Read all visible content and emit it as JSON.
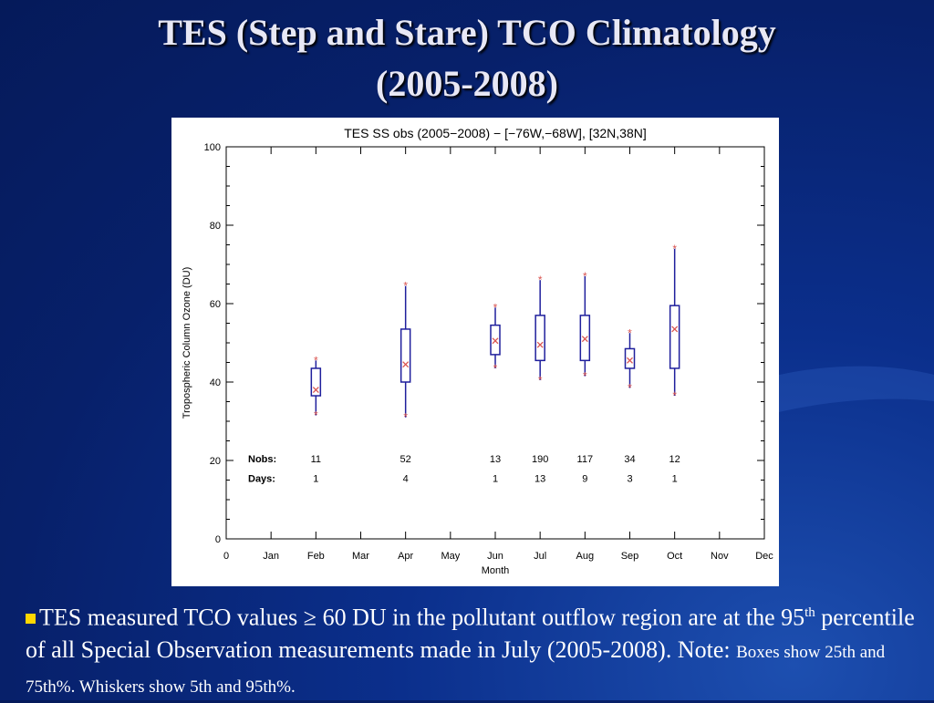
{
  "slide": {
    "title_line1": "TES (Step and Stare) TCO Climatology",
    "title_line2": "(2005-2008)"
  },
  "caption": {
    "part1": "TES measured TCO values ≥ 60 DU in the pollutant outflow region are at the 95",
    "sup": "th",
    "part2": " percentile of  all Special Observation measurements made in July (2005-2008). Note: ",
    "note": "Boxes show 25th and 75th%.  Whiskers show 5th and 95th%."
  },
  "colors": {
    "box": "#1f1f9c",
    "marker": "#d9534f",
    "accent_bullet": "#ffd700"
  },
  "chart_data": {
    "type": "box",
    "title": "TES SS obs (2005−2008) − [−76W,−68W], [32N,38N]",
    "xlabel": "Month",
    "ylabel": "Tropospheric Column Ozone (DU)",
    "x_ticks": [
      {
        "x": 0,
        "label": "0"
      },
      {
        "x": 1,
        "label": "Jan"
      },
      {
        "x": 2,
        "label": "Feb"
      },
      {
        "x": 3,
        "label": "Mar"
      },
      {
        "x": 4,
        "label": "Apr"
      },
      {
        "x": 5,
        "label": "May"
      },
      {
        "x": 6,
        "label": "Jun"
      },
      {
        "x": 7,
        "label": "Jul"
      },
      {
        "x": 8,
        "label": "Aug"
      },
      {
        "x": 9,
        "label": "Sep"
      },
      {
        "x": 10,
        "label": "Oct"
      },
      {
        "x": 11,
        "label": "Nov"
      },
      {
        "x": 12,
        "label": "Dec"
      }
    ],
    "y_ticks": [
      0,
      20,
      40,
      60,
      80,
      100
    ],
    "xlim": [
      0,
      12
    ],
    "ylim": [
      0,
      100
    ],
    "nobs_label": "Nobs:",
    "days_label": "Days:",
    "boxes": [
      {
        "month": "Feb",
        "x": 2,
        "p5": 31.5,
        "q1": 36.5,
        "mean": 38,
        "q3": 43.5,
        "p95": 45.5,
        "min": 31.5,
        "max": 45.5,
        "nobs": "11",
        "days": "1"
      },
      {
        "month": "Apr",
        "x": 4,
        "p5": 31,
        "q1": 40,
        "mean": 44.5,
        "q3": 53.5,
        "p95": 64.5,
        "min": 31,
        "max": 64.5,
        "nobs": "52",
        "days": "4"
      },
      {
        "month": "Jun",
        "x": 6,
        "p5": 43.5,
        "q1": 47,
        "mean": 50.5,
        "q3": 54.5,
        "p95": 59,
        "min": 43.5,
        "max": 59,
        "nobs": "13",
        "days": "1"
      },
      {
        "month": "Jul",
        "x": 7,
        "p5": 40.5,
        "q1": 45.5,
        "mean": 49.5,
        "q3": 57,
        "p95": 66,
        "min": 40.5,
        "max": 66,
        "nobs": "190",
        "days": "13"
      },
      {
        "month": "Aug",
        "x": 8,
        "p5": 41.5,
        "q1": 45.5,
        "mean": 51,
        "q3": 57,
        "p95": 67,
        "min": 41.5,
        "max": 67,
        "nobs": "117",
        "days": "9"
      },
      {
        "month": "Sep",
        "x": 9,
        "p5": 38.5,
        "q1": 43.5,
        "mean": 45.5,
        "q3": 48.5,
        "p95": 52.5,
        "min": 38.5,
        "max": 52.5,
        "nobs": "34",
        "days": "3"
      },
      {
        "month": "Oct",
        "x": 10,
        "p5": 36.5,
        "q1": 43.5,
        "mean": 53.5,
        "q3": 59.5,
        "p95": 74,
        "min": 36.5,
        "max": 74,
        "nobs": "12",
        "days": "1"
      }
    ]
  }
}
